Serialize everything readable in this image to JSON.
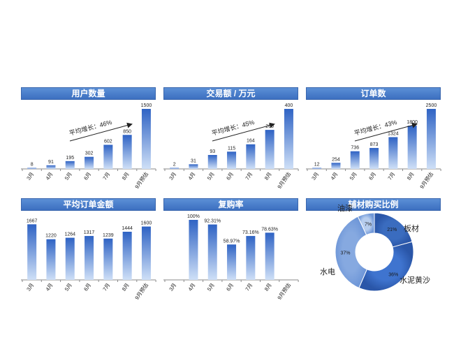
{
  "colors": {
    "header": "#4a80cc",
    "bar_top": "#2f63c4",
    "bar_bottom": "#cfe0f7",
    "axis": "#8a8a8a"
  },
  "panels": [
    {
      "title": "用户数量",
      "annotation": "平均增长：46%"
    },
    {
      "title": "交易额 / 万元",
      "annotation": "平均增长：45%"
    },
    {
      "title": "订单数",
      "annotation": "平均增长：43%"
    },
    {
      "title": "平均订单金额",
      "annotation": ""
    },
    {
      "title": "复购率",
      "annotation": ""
    },
    {
      "title": "辅材购买比例",
      "annotation": ""
    }
  ],
  "chart_data": [
    {
      "type": "bar",
      "title": "用户数量",
      "categories": [
        "3月",
        "4月",
        "5月",
        "6月",
        "7月",
        "8月",
        "9月预估"
      ],
      "values": [
        8,
        91,
        195,
        302,
        602,
        850,
        1500
      ],
      "labels": [
        "8",
        "91",
        "195",
        "302",
        "602",
        "850",
        "1500"
      ],
      "ylim": [
        0,
        1500
      ],
      "annotation": "平均增长：46%"
    },
    {
      "type": "bar",
      "title": "交易额 / 万元",
      "categories": [
        "3月",
        "4月",
        "5月",
        "6月",
        "7月",
        "8月",
        "9月预估"
      ],
      "values": [
        2,
        31,
        93,
        115,
        164,
        260,
        400
      ],
      "labels": [
        "2",
        "31",
        "93",
        "115",
        "164",
        "260",
        "400"
      ],
      "ylim": [
        0,
        400
      ],
      "annotation": "平均增长：45%"
    },
    {
      "type": "bar",
      "title": "订单数",
      "categories": [
        "3月",
        "4月",
        "5月",
        "6月",
        "7月",
        "8月",
        "9月预估"
      ],
      "values": [
        12,
        254,
        736,
        873,
        1324,
        1800,
        2500
      ],
      "labels": [
        "12",
        "254",
        "736",
        "873",
        "1324",
        "1800",
        "2500"
      ],
      "ylim": [
        0,
        2500
      ],
      "annotation": "平均增长：43%"
    },
    {
      "type": "bar",
      "title": "平均订单金额",
      "categories": [
        "3月",
        "4月",
        "5月",
        "6月",
        "7月",
        "8月",
        "9月预估"
      ],
      "values": [
        1667,
        1220,
        1264,
        1317,
        1239,
        1444,
        1600
      ],
      "labels": [
        "1667",
        "1220",
        "1264",
        "1317",
        "1239",
        "1444",
        "1600"
      ],
      "ylim": [
        0,
        1800
      ],
      "annotation": ""
    },
    {
      "type": "bar",
      "title": "复购率",
      "categories": [
        "3月",
        "4月",
        "5月",
        "6月",
        "7月",
        "8月",
        "9月预估"
      ],
      "values": [
        null,
        100,
        92.31,
        58.97,
        73.16,
        78.63,
        null
      ],
      "labels": [
        "",
        "100%",
        "92.31%",
        "58.97%",
        "73.16%",
        "78.63%",
        ""
      ],
      "ylim": [
        0,
        100
      ],
      "annotation": ""
    },
    {
      "type": "pie",
      "title": "辅材购买比例",
      "slices": [
        {
          "name": "板材",
          "value": 21,
          "label": "21%"
        },
        {
          "name": "水泥黄沙",
          "value": 36,
          "label": "36%"
        },
        {
          "name": "水电",
          "value": 37,
          "label": "37%"
        },
        {
          "name": "油漆",
          "value": 7,
          "label": "7%"
        }
      ]
    }
  ]
}
